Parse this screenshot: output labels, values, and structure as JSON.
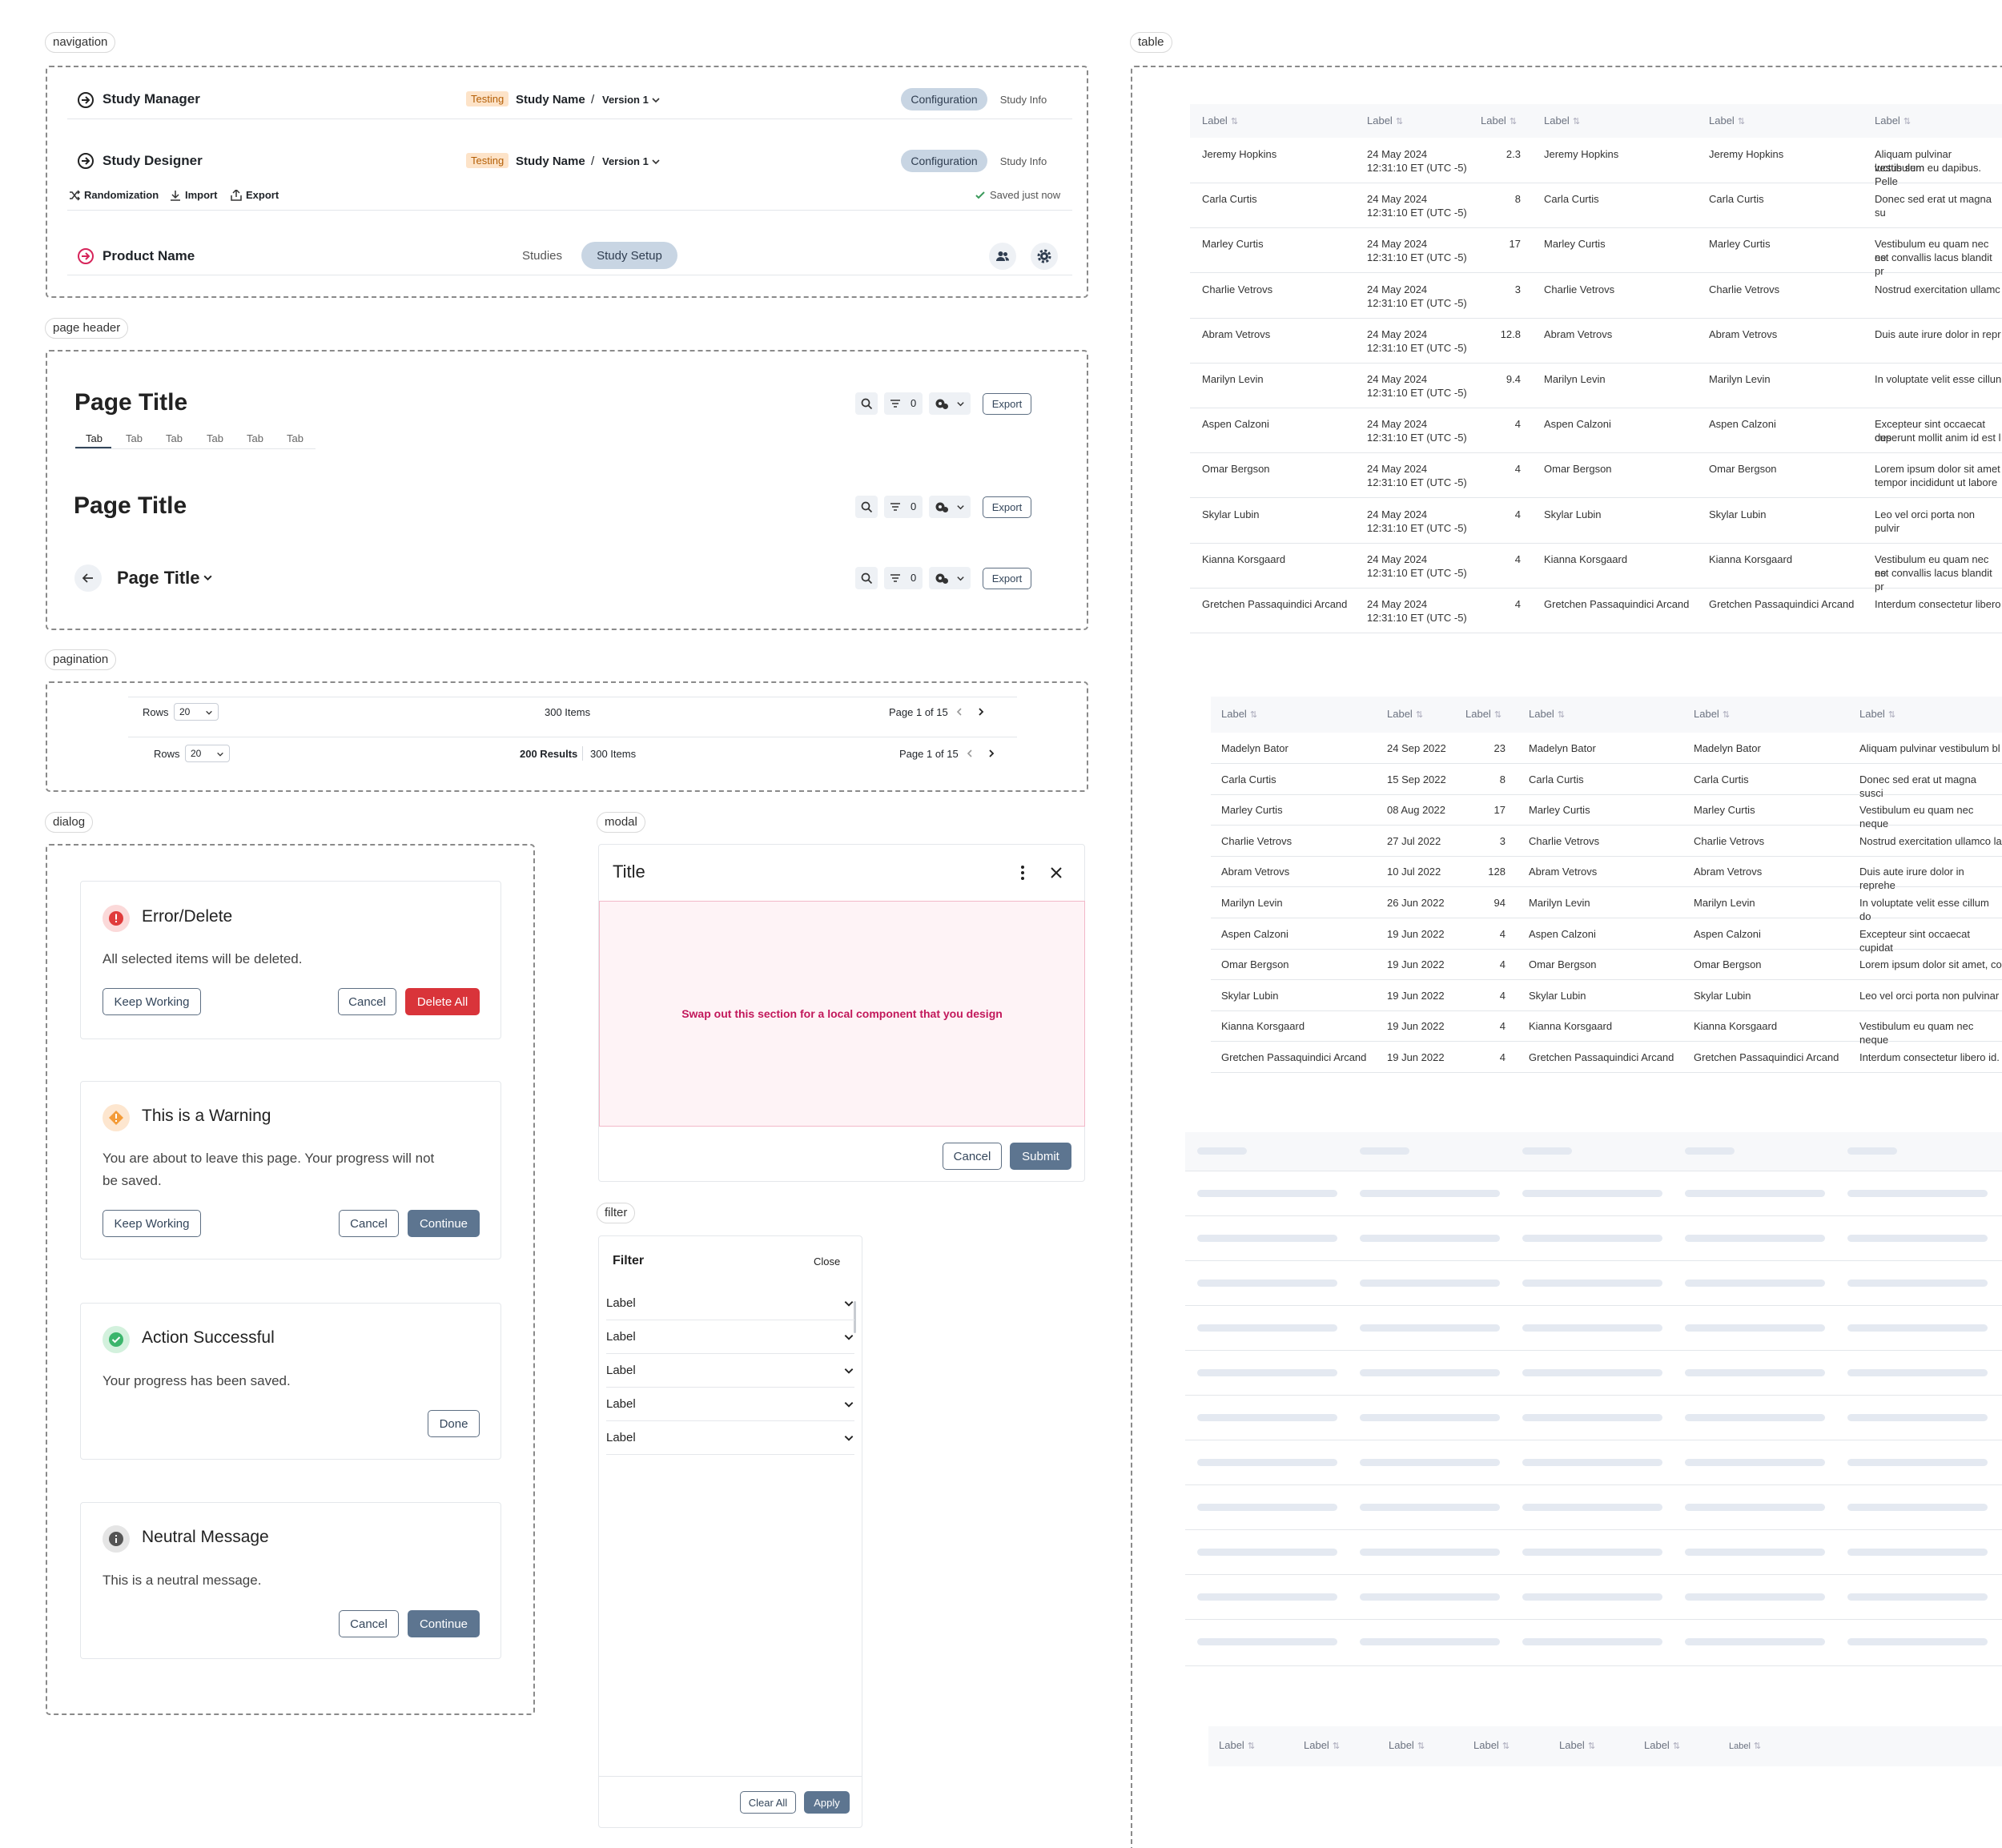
{
  "sections": {
    "navigation": "navigation",
    "page_header": "page header",
    "pagination": "pagination",
    "dialog": "dialog",
    "modal": "modal",
    "filter": "filter",
    "table": "table"
  },
  "nav1": {
    "title": "Study Manager",
    "tag": "Testing",
    "study": "Study Name",
    "sep": "/",
    "version": "Version 1",
    "seg_active": "Configuration",
    "seg_other": "Study Info"
  },
  "nav2": {
    "title": "Study Designer",
    "tag": "Testing",
    "study": "Study Name",
    "sep": "/",
    "version": "Version 1",
    "seg_active": "Configuration",
    "seg_other": "Study Info",
    "tools": [
      "Randomization",
      "Import",
      "Export"
    ],
    "saved": "Saved just now"
  },
  "nav3": {
    "title": "Product Name",
    "tab1": "Studies",
    "tab2": "Study Setup"
  },
  "header": {
    "title": "Page Title",
    "tabs": [
      "Tab",
      "Tab",
      "Tab",
      "Tab",
      "Tab",
      "Tab"
    ],
    "filter_count": "0",
    "export": "Export"
  },
  "pagination": {
    "rows_label": "Rows",
    "rows_value": "20",
    "items": "300 Items",
    "results": "200 Results",
    "page": "Page 1 of 15"
  },
  "dialogs": [
    {
      "title": "Error/Delete",
      "body": "All selected items will be deleted.",
      "left": "Keep Working",
      "cancel": "Cancel",
      "primary": "Delete All",
      "color": "#e03b3b"
    },
    {
      "title": "This is a Warning",
      "body1": "You are about to leave this page. Your progress will not",
      "body2": "be saved.",
      "left": "Keep Working",
      "cancel": "Cancel",
      "primary": "Continue",
      "color": "#f39b38"
    },
    {
      "title": "Action Successful",
      "body": "Your progress has been saved.",
      "primary": "Done",
      "color": "#3bb56b"
    },
    {
      "title": "Neutral Message",
      "body": "This is a neutral message.",
      "cancel": "Cancel",
      "primary": "Continue",
      "color": "#555555"
    }
  ],
  "modal": {
    "title": "Title",
    "placeholder": "Swap out this section for a local component that you design",
    "cancel": "Cancel",
    "submit": "Submit"
  },
  "filter": {
    "title": "Filter",
    "close": "Close",
    "items": [
      "Label",
      "Label",
      "Label",
      "Label",
      "Label"
    ],
    "clear": "Clear All",
    "apply": "Apply"
  },
  "table1": {
    "headers": [
      "Label",
      "Label",
      "Label",
      "Label",
      "Label",
      "Label"
    ],
    "rows": [
      [
        "Jeremy Hopkins",
        "24 May 2024",
        "12:31:10 ET (UTC -5)",
        "2.3",
        "Jeremy Hopkins",
        "Jeremy Hopkins",
        "Aliquam pulvinar vestibulum",
        "luctus sem eu dapibus. Pelle"
      ],
      [
        "Carla Curtis",
        "24 May 2024",
        "12:31:10 ET (UTC -5)",
        "8",
        "Carla Curtis",
        "Carla Curtis",
        "Donec sed erat ut magna su",
        ""
      ],
      [
        "Marley Curtis",
        "24 May 2024",
        "12:31:10 ET (UTC -5)",
        "17",
        "Marley Curtis",
        "Marley Curtis",
        "Vestibulum eu quam nec ne",
        "est convallis lacus blandit pr"
      ],
      [
        "Charlie Vetrovs",
        "24 May 2024",
        "12:31:10 ET (UTC -5)",
        "3",
        "Charlie Vetrovs",
        "Charlie Vetrovs",
        "Nostrud exercitation ullamc",
        ""
      ],
      [
        "Abram Vetrovs",
        "24 May 2024",
        "12:31:10 ET (UTC -5)",
        "12.8",
        "Abram Vetrovs",
        "Abram Vetrovs",
        "Duis aute irure dolor in repr",
        ""
      ],
      [
        "Marilyn Levin",
        "24 May 2024",
        "12:31:10 ET (UTC -5)",
        "9.4",
        "Marilyn Levin",
        "Marilyn Levin",
        "In voluptate velit esse cillun",
        ""
      ],
      [
        "Aspen Calzoni",
        "24 May 2024",
        "12:31:10 ET (UTC -5)",
        "4",
        "Aspen Calzoni",
        "Aspen Calzoni",
        "Excepteur sint occaecat cup",
        "deserunt mollit anim id est l"
      ],
      [
        "Omar Bergson",
        "24 May 2024",
        "12:31:10 ET (UTC -5)",
        "4",
        "Omar Bergson",
        "Omar Bergson",
        "Lorem ipsum dolor sit amet",
        "tempor incididunt ut labore"
      ],
      [
        "Skylar Lubin",
        "24 May 2024",
        "12:31:10 ET (UTC -5)",
        "4",
        "Skylar Lubin",
        "Skylar Lubin",
        "Leo vel orci porta non pulvir",
        ""
      ],
      [
        "Kianna Korsgaard",
        "24 May 2024",
        "12:31:10 ET (UTC -5)",
        "4",
        "Kianna Korsgaard",
        "Kianna Korsgaard",
        "Vestibulum eu quam nec ne",
        "est convallis lacus blandit pr"
      ],
      [
        "Gretchen Passaquindici Arcand",
        "24 May 2024",
        "12:31:10 ET (UTC -5)",
        "4",
        "Gretchen Passaquindici Arcand",
        "Gretchen Passaquindici Arcand",
        "Interdum consectetur libero",
        ""
      ]
    ]
  },
  "table2": {
    "headers": [
      "Label",
      "Label",
      "Label",
      "Label",
      "Label",
      "Label"
    ],
    "rows": [
      [
        "Madelyn Bator",
        "24 Sep 2022",
        "23",
        "Madelyn Bator",
        "Madelyn Bator",
        "Aliquam pulvinar vestibulum bl"
      ],
      [
        "Carla Curtis",
        "15 Sep 2022",
        "8",
        "Carla Curtis",
        "Carla Curtis",
        "Donec sed erat ut magna susci"
      ],
      [
        "Marley Curtis",
        "08 Aug 2022",
        "17",
        "Marley Curtis",
        "Marley Curtis",
        "Vestibulum eu quam nec neque"
      ],
      [
        "Charlie Vetrovs",
        "27 Jul 2022",
        "3",
        "Charlie Vetrovs",
        "Charlie Vetrovs",
        "Nostrud exercitation ullamco la"
      ],
      [
        "Abram Vetrovs",
        "10 Jul 2022",
        "128",
        "Abram Vetrovs",
        "Abram Vetrovs",
        "Duis aute irure dolor in reprehe"
      ],
      [
        "Marilyn Levin",
        "26 Jun 2022",
        "94",
        "Marilyn Levin",
        "Marilyn Levin",
        "In voluptate velit esse cillum do"
      ],
      [
        "Aspen Calzoni",
        "19 Jun 2022",
        "4",
        "Aspen Calzoni",
        "Aspen Calzoni",
        "Excepteur sint occaecat cupidat"
      ],
      [
        "Omar Bergson",
        "19 Jun 2022",
        "4",
        "Omar Bergson",
        "Omar Bergson",
        "Lorem ipsum dolor sit amet, co"
      ],
      [
        "Skylar Lubin",
        "19 Jun 2022",
        "4",
        "Skylar Lubin",
        "Skylar Lubin",
        "Leo vel orci porta non pulvinar"
      ],
      [
        "Kianna Korsgaard",
        "19 Jun 2022",
        "4",
        "Kianna Korsgaard",
        "Kianna Korsgaard",
        "Vestibulum eu quam nec neque"
      ],
      [
        "Gretchen Passaquindici Arcand",
        "19 Jun 2022",
        "4",
        "Gretchen Passaquindici Arcand",
        "Gretchen Passaquindici Arcand",
        "Interdum consectetur libero id."
      ]
    ]
  },
  "table4": {
    "headers": [
      "Label",
      "Label",
      "Label",
      "Label",
      "Label",
      "Label",
      "Label"
    ]
  }
}
